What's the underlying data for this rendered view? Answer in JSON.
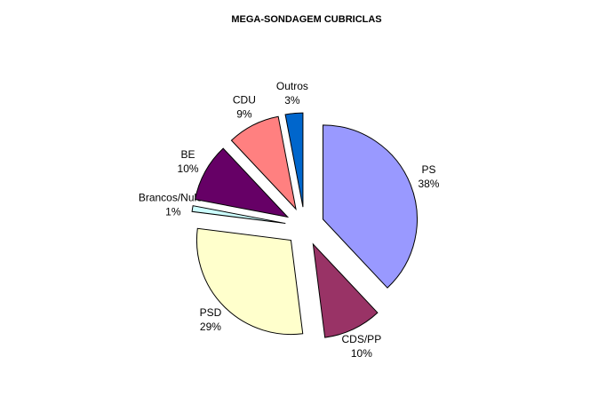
{
  "chart_data": {
    "type": "pie",
    "title": "MEGA-SONDAGEM CUBRICLAS",
    "categories": [
      "PS",
      "CDS/PP",
      "PSD",
      "Brancos/Nulos",
      "BE",
      "CDU",
      "Outros"
    ],
    "values": [
      38,
      10,
      29,
      1,
      10,
      9,
      3
    ],
    "value_labels": [
      "38%",
      "10%",
      "29%",
      "1%",
      "10%",
      "9%",
      "3%"
    ],
    "colors": [
      "#9999ff",
      "#993366",
      "#ffffcc",
      "#ccffff",
      "#660066",
      "#ff8080",
      "#0066cc"
    ]
  }
}
